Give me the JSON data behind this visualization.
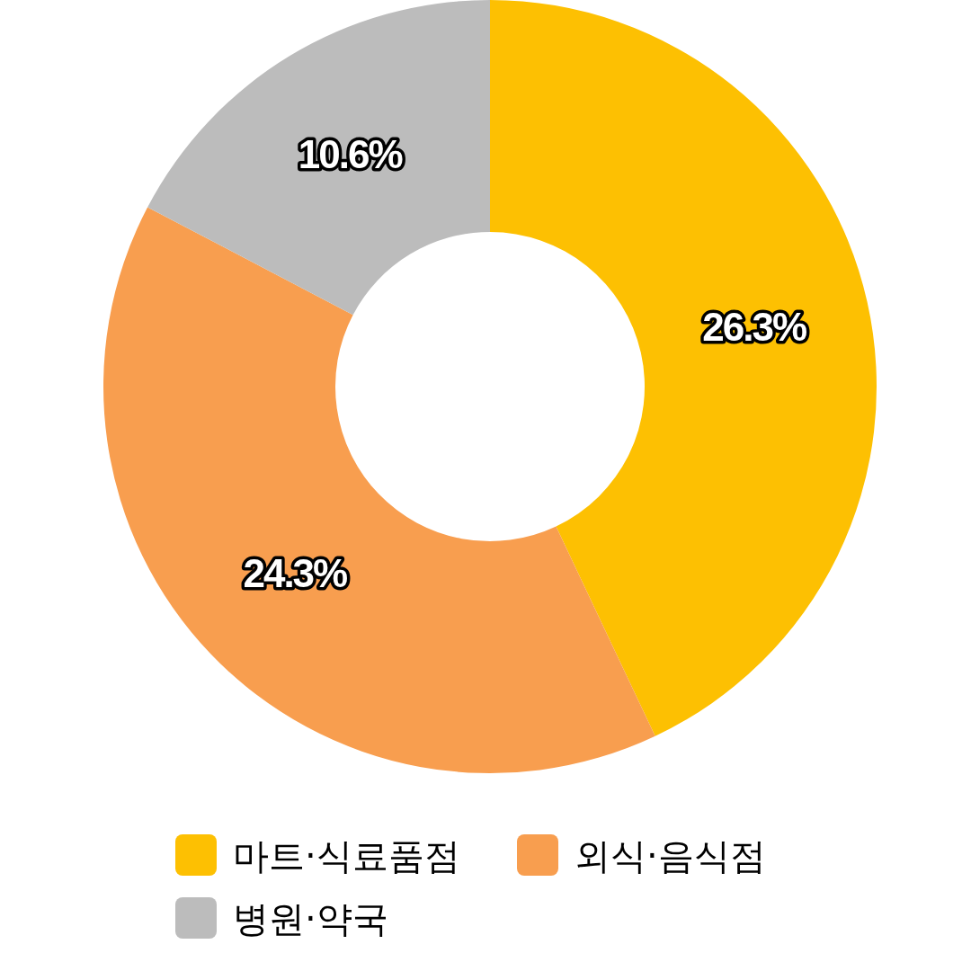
{
  "chart_data": {
    "type": "donut",
    "categories": [
      "마트·식료품점",
      "외식·음식점",
      "병원·약국"
    ],
    "values": [
      26.3,
      24.3,
      10.6
    ],
    "colors": [
      "#fdc002",
      "#f89e4f",
      "#bcbcbc"
    ],
    "value_labels": [
      "26.3%",
      "24.3%",
      "10.6%"
    ],
    "legend": "bottom"
  }
}
